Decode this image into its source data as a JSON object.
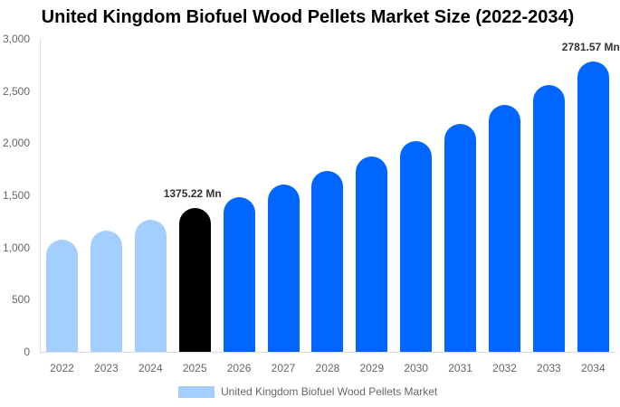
{
  "chart_data": {
    "type": "bar",
    "title": "United Kingdom Biofuel Wood Pellets Market Size (2022-2034)",
    "xlabel": "",
    "ylabel": "",
    "ylim": [
      0,
      3000
    ],
    "yticks": [
      "0",
      "500",
      "1,000",
      "1,500",
      "2,000",
      "2,500",
      "3,000"
    ],
    "grid": false,
    "legend_position": "bottom",
    "categories": [
      "2022",
      "2023",
      "2024",
      "2025",
      "2026",
      "2027",
      "2028",
      "2029",
      "2030",
      "2031",
      "2032",
      "2033",
      "2034"
    ],
    "series": [
      {
        "name": "United Kingdom Biofuel Wood Pellets Market",
        "values": [
          1075,
          1162,
          1266,
          1375.22,
          1483,
          1604,
          1734,
          1873,
          2020,
          2185,
          2367,
          2558,
          2781.57
        ]
      }
    ],
    "annotations": [
      {
        "category": "2025",
        "text": "1375.22 Mn"
      },
      {
        "category": "2034",
        "text": "2781.57 Mn"
      }
    ],
    "colors": {
      "historical": "#a3cefe",
      "base_year": "#000000",
      "forecast": "#0066ff"
    }
  }
}
